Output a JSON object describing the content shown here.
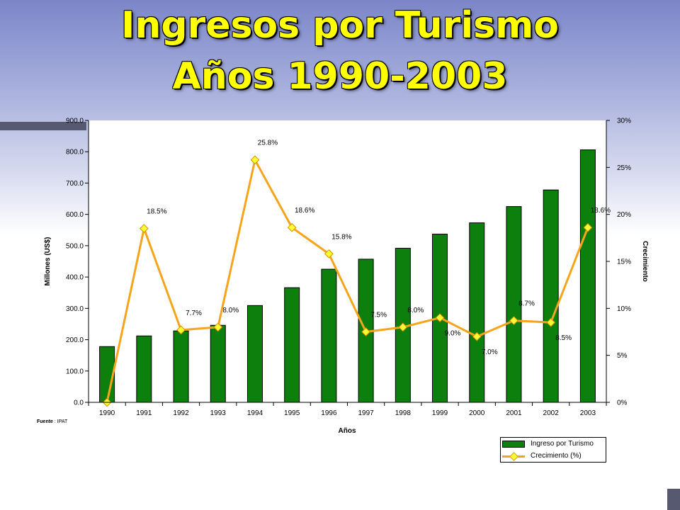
{
  "slide": {
    "title_line1": "Ingresos por Turismo",
    "title_line2": "Años 1990-2003",
    "source_label": "Fuente",
    "source_value": ": IPAT",
    "colors": {
      "bar": "#0c7f0c",
      "line": "#f7a41d",
      "marker": "#ffff33",
      "title": "#ffff00"
    }
  },
  "chart_data": {
    "type": "bar",
    "categories": [
      "1990",
      "1991",
      "1992",
      "1993",
      "1994",
      "1995",
      "1996",
      "1997",
      "1998",
      "1999",
      "2000",
      "2001",
      "2002",
      "2003"
    ],
    "series": [
      {
        "name": "Ingreso por Turismo",
        "type": "bar",
        "axis": "left",
        "values": [
          178,
          212,
          228,
          246,
          309,
          366,
          425,
          457,
          492,
          537,
          573,
          625,
          678,
          806
        ]
      },
      {
        "name": "Crecimiento (%)",
        "type": "line",
        "axis": "right",
        "values": [
          0,
          18.5,
          7.7,
          8.0,
          25.8,
          18.6,
          15.8,
          7.5,
          8.0,
          9.0,
          7.0,
          8.7,
          8.5,
          18.6
        ]
      }
    ],
    "data_labels": [
      "",
      "18.5%",
      "7.7%",
      "8.0%",
      "25.8%",
      "18.6%",
      "15.8%",
      "7.5%",
      "8.0%",
      "9.0%",
      "7.0%",
      "8.7%",
      "8.5%",
      "18.6%"
    ],
    "xlabel": "Años",
    "ylabel": "Millones (US$)",
    "y2label": "Crecimiento",
    "ylim": [
      0,
      900
    ],
    "yticks": [
      "0.0",
      "100.0",
      "200.0",
      "300.0",
      "400.0",
      "500.0",
      "600.0",
      "700.0",
      "800.0",
      "900.0"
    ],
    "y2lim": [
      0,
      30
    ],
    "y2ticks": [
      "0%",
      "5%",
      "10%",
      "15%",
      "20%",
      "25%",
      "30%"
    ],
    "grid": false,
    "legend_position": "bottom-right"
  }
}
